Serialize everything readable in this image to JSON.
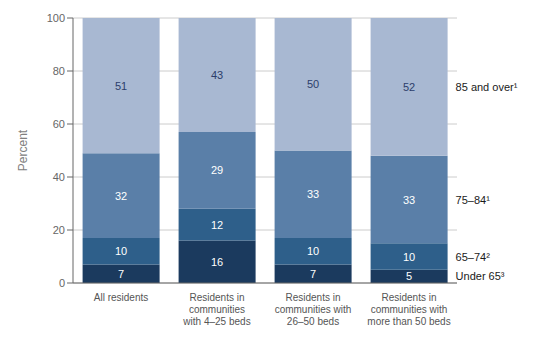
{
  "chart_data": {
    "type": "bar",
    "stacked": true,
    "data_labels": true,
    "grid": true,
    "categories": [
      "All residents",
      "Residents in\ncommunities\nwith 4–25 beds",
      "Residents in\ncommunities with\n26–50 beds",
      "Residents in\ncommunities with\nmore than 50 beds"
    ],
    "series": [
      {
        "name": "Under 65³",
        "color": "#1b3a5e",
        "values": [
          7,
          16,
          7,
          5
        ]
      },
      {
        "name": "65–74²",
        "color": "#2e5f8a",
        "values": [
          10,
          12,
          10,
          10
        ]
      },
      {
        "name": "75–84¹",
        "color": "#5a7fa8",
        "values": [
          32,
          29,
          33,
          33
        ]
      },
      {
        "name": "85 and over¹",
        "color": "#a8b8d2",
        "values": [
          51,
          43,
          50,
          52
        ]
      }
    ],
    "ylabel": "Percent",
    "ylim": [
      0,
      100
    ],
    "yticks": [
      0,
      20,
      40,
      60,
      80,
      100
    ]
  }
}
